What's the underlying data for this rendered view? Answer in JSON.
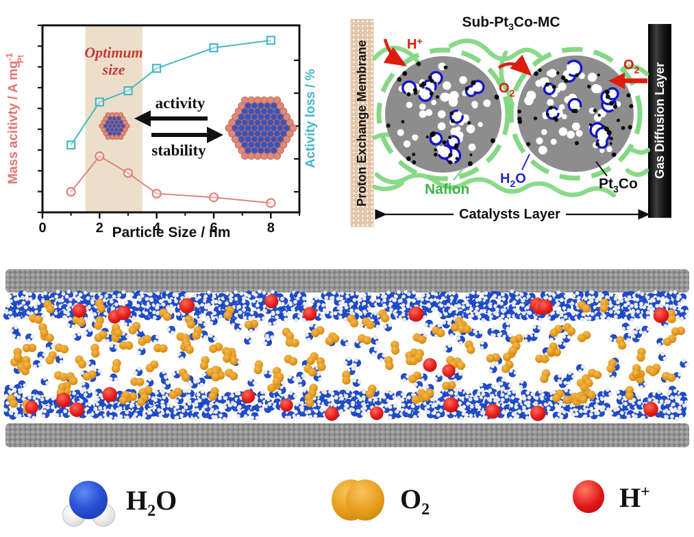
{
  "chart_labels": {
    "y_left_main": "Mass acitivty / A mg",
    "y_left_sup": "-1",
    "y_left_sub": "Pt",
    "y_right": "Activity loss / %",
    "x_label": "Particle Size / nm",
    "optimum_line1": "Optimum",
    "optimum_line2": "size",
    "activity": "activity",
    "stability": "stability"
  },
  "chart_data": {
    "type": "line",
    "x": [
      1,
      2,
      3,
      4,
      6,
      8
    ],
    "series": [
      {
        "name": "Activity loss / %",
        "marker": "square",
        "color": "#45b7c6",
        "axis": "right",
        "values_pct_of_axis": [
          36,
          59,
          65,
          77,
          88,
          92
        ]
      },
      {
        "name": "Mass acitivty / A mg-1 Pt",
        "marker": "circle",
        "color": "#e2837b",
        "axis": "left",
        "values_pct_of_axis": [
          11,
          30,
          21,
          10,
          8,
          5
        ]
      }
    ],
    "xlabel": "Particle Size / nm",
    "ylabel_left": "Mass acitivty / A mg-1 Pt",
    "ylabel_right": "Activity loss / %",
    "xlim": [
      0,
      9
    ],
    "x_major_ticks": [
      0,
      2,
      4,
      6,
      8
    ],
    "x_minor_ticks": [
      1,
      3,
      5,
      7,
      9
    ],
    "grid": false,
    "legend_position": "none",
    "optimum_band": {
      "x0": 1.5,
      "x1": 3.5,
      "color": "#ecdfc9",
      "label": "Optimum size"
    },
    "annotations": [
      {
        "text": "activity",
        "arrow_direction": "left",
        "meaning": "smaller particle size gives higher activity"
      },
      {
        "text": "stability",
        "arrow_direction": "right",
        "meaning": "larger particle size gives higher stability"
      }
    ]
  },
  "diagram": {
    "title": {
      "pre": "Sub-Pt",
      "sub": "3",
      "post": "Co-MC"
    },
    "membrane_label": "Proton Exchange Membrane",
    "gdl_label": "Gas Diffusion Layer",
    "nafion_label": "Nafion",
    "catalysts_layer_label": "Catalysts Layer",
    "h_plus": {
      "base": "H",
      "sup": "+"
    },
    "o2": {
      "base": "O",
      "sub": "2"
    },
    "h2o": {
      "base": "H",
      "sub": "2",
      "post": "O"
    },
    "pt3co": {
      "base": "Pt",
      "sub": "3",
      "post": "Co"
    },
    "colors": {
      "nafion_green": "#84d884",
      "label_green": "#3cb54a",
      "arrow_red": "#dd1c10",
      "membrane_beige": "#f7ead9",
      "membrane_dot": "#d9b596",
      "carbon_gray": "#8d8d8d",
      "pt_blue": "#1414cc",
      "gdl_black": "#111111",
      "h2o_blue": "#2424cc"
    }
  },
  "simulation": {
    "wall_color": "#9a9a9a",
    "water_color": "#1d4ed0",
    "oxygen_color": "#e2961b",
    "proton_color": "#e41f1f"
  },
  "legend": {
    "items": [
      {
        "icon": "water-molecule-icon",
        "base": "H",
        "sub": "2",
        "sup": "",
        "post": "O",
        "color": "#2a52d8"
      },
      {
        "icon": "oxygen-molecule-icon",
        "base": "O",
        "sub": "2",
        "sup": "",
        "post": "",
        "color": "#e8a01e"
      },
      {
        "icon": "proton-icon",
        "base": "H",
        "sub": "",
        "sup": "+",
        "post": "",
        "color": "#e01818"
      }
    ]
  }
}
